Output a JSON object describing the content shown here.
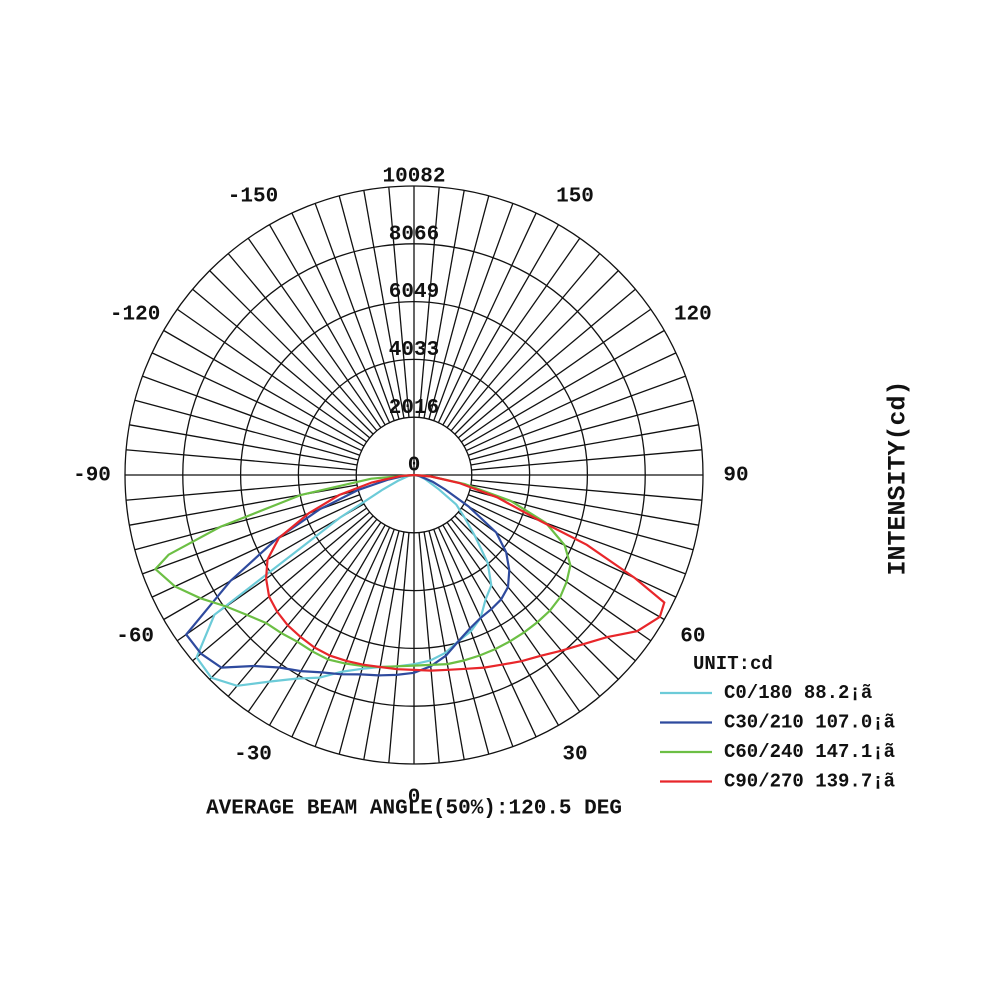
{
  "chart_data": {
    "type": "polar",
    "title": "AVERAGE BEAM ANGLE(50%):120.5 DEG",
    "r_axis_label": "INTENSITY(cd)",
    "unit_label": "UNIT:cd",
    "rlim": [
      0,
      10082
    ],
    "rticks": [
      0,
      2016,
      4033,
      6049,
      8066,
      10082
    ],
    "angle_ticks": [
      -150,
      -120,
      -90,
      -60,
      -30,
      0,
      30,
      60,
      90,
      120,
      150
    ],
    "angle_grid_step": 5,
    "series": [
      {
        "name": "C0/180 88.2¡ã",
        "color": "#6ccbd8",
        "x": [
          -90,
          -80,
          -70,
          -65,
          -60,
          -55,
          -50,
          -45,
          -40,
          -35,
          -30,
          -25,
          -20,
          -15,
          -10,
          -5,
          0,
          5,
          10,
          15,
          20,
          25,
          30,
          35,
          40,
          45,
          50,
          55,
          60,
          70,
          80,
          90
        ],
        "values": [
          0,
          200,
          600,
          1200,
          3000,
          8500,
          9900,
          10000,
          9600,
          8800,
          8200,
          7800,
          7300,
          7000,
          6800,
          6700,
          6600,
          6500,
          6300,
          6000,
          5800,
          5500,
          5000,
          4700,
          4000,
          3000,
          2300,
          1800,
          1000,
          400,
          150,
          0
        ]
      },
      {
        "name": "C30/210 107.0¡ã",
        "color": "#2e4a9e",
        "x": [
          -90,
          -85,
          -80,
          -75,
          -70,
          -65,
          -60,
          -55,
          -50,
          -45,
          -40,
          -35,
          -30,
          -25,
          -20,
          -15,
          -10,
          -5,
          0,
          5,
          10,
          15,
          20,
          25,
          30,
          35,
          40,
          45,
          50,
          55,
          60,
          65,
          70,
          80,
          90
        ],
        "values": [
          0,
          300,
          900,
          2000,
          3500,
          5300,
          7400,
          9700,
          9700,
          9500,
          8700,
          8200,
          7900,
          7600,
          7400,
          7200,
          7100,
          7000,
          6900,
          6700,
          6400,
          6000,
          5700,
          5500,
          5400,
          5300,
          5100,
          4700,
          4200,
          3500,
          2200,
          1200,
          700,
          200,
          0
        ]
      },
      {
        "name": "C60/240 147.1¡ã",
        "color": "#6cbf44",
        "x": [
          -90,
          -85,
          -80,
          -75,
          -72,
          -70,
          -65,
          -60,
          -55,
          -50,
          -45,
          -40,
          -35,
          -30,
          -25,
          -20,
          -15,
          -10,
          -5,
          0,
          5,
          10,
          15,
          20,
          25,
          30,
          35,
          40,
          45,
          50,
          55,
          60,
          65,
          70,
          75,
          80,
          85,
          90
        ],
        "values": [
          0,
          1500,
          4000,
          7000,
          9000,
          9600,
          9200,
          8600,
          8000,
          7600,
          7300,
          7200,
          7100,
          7100,
          7100,
          7000,
          6900,
          6800,
          6700,
          6650,
          6650,
          6700,
          6700,
          6700,
          6700,
          6700,
          6700,
          6700,
          6700,
          6650,
          6500,
          6300,
          5800,
          4900,
          3500,
          1800,
          600,
          0
        ]
      },
      {
        "name": "C90/270 139.7¡ã",
        "color": "#e8262a",
        "x": [
          -90,
          -85,
          -80,
          -75,
          -70,
          -65,
          -60,
          -55,
          -50,
          -45,
          -40,
          -35,
          -30,
          -25,
          -20,
          -15,
          -10,
          -5,
          0,
          5,
          10,
          15,
          20,
          25,
          30,
          35,
          40,
          45,
          50,
          55,
          60,
          63,
          65,
          68,
          70,
          75,
          80,
          85,
          90
        ],
        "values": [
          0,
          500,
          1500,
          2700,
          3900,
          5200,
          5900,
          6300,
          6600,
          6750,
          6850,
          6900,
          6950,
          6950,
          6900,
          6850,
          6800,
          6800,
          6800,
          6850,
          6900,
          7000,
          7150,
          7300,
          7500,
          7700,
          8000,
          8350,
          8800,
          9500,
          9900,
          9800,
          8500,
          6500,
          4700,
          3000,
          1600,
          600,
          0
        ]
      }
    ]
  }
}
